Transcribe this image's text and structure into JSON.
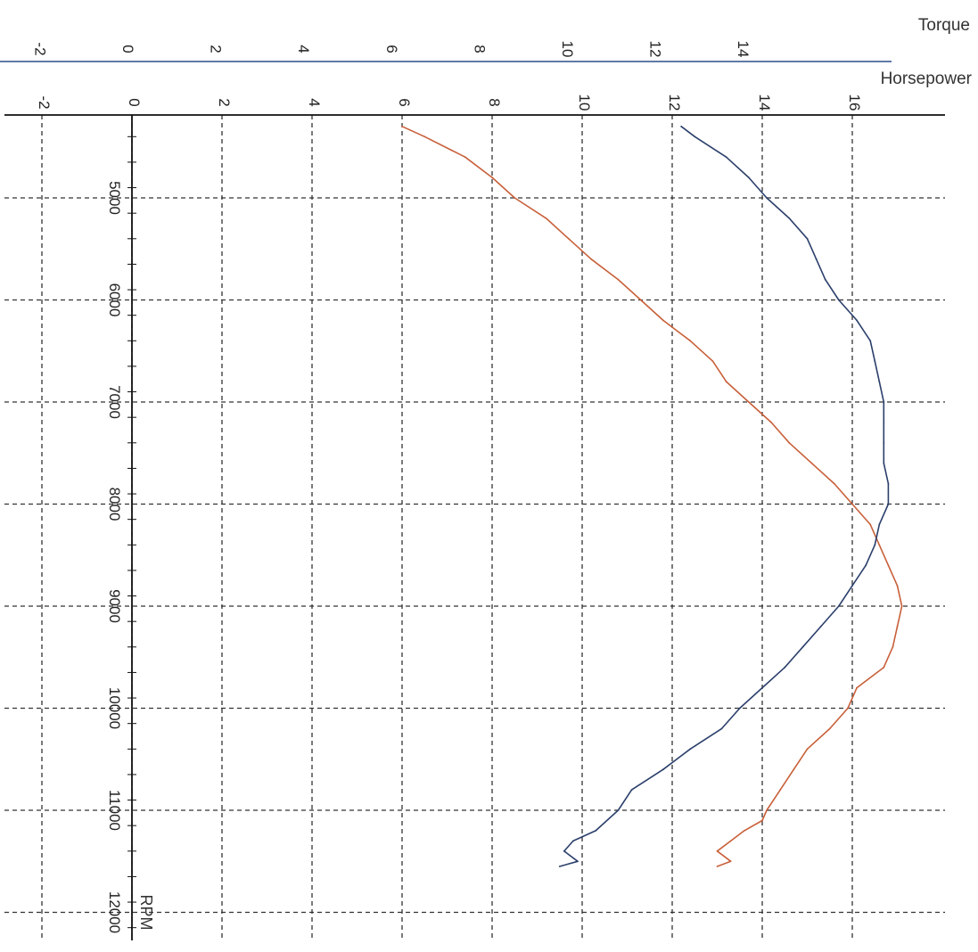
{
  "chart_data": {
    "type": "line",
    "orientation": "rotated-90",
    "x_axis": {
      "label": "RPM",
      "ticks": [
        5000,
        6000,
        7000,
        8000,
        9000,
        10000,
        11000,
        12000
      ]
    },
    "value_axes": [
      {
        "label": "Torque",
        "ticks": [
          -2,
          0,
          2,
          4,
          6,
          8,
          10,
          12,
          14
        ],
        "color": "#2b4f8c"
      },
      {
        "label": "Horsepower",
        "ticks": [
          -2,
          0,
          2,
          4,
          6,
          8,
          10,
          12,
          14,
          16
        ],
        "color": "#111111"
      }
    ],
    "grid": true,
    "series": [
      {
        "color": "#c8603a",
        "scale": "Horsepower",
        "points": [
          [
            4300,
            6.0
          ],
          [
            4400,
            6.5
          ],
          [
            4600,
            7.4
          ],
          [
            4800,
            8.0
          ],
          [
            5000,
            8.5
          ],
          [
            5200,
            9.2
          ],
          [
            5400,
            9.7
          ],
          [
            5600,
            10.2
          ],
          [
            5800,
            10.8
          ],
          [
            6000,
            11.3
          ],
          [
            6200,
            11.8
          ],
          [
            6400,
            12.4
          ],
          [
            6600,
            12.9
          ],
          [
            6800,
            13.2
          ],
          [
            7000,
            13.7
          ],
          [
            7200,
            14.2
          ],
          [
            7400,
            14.6
          ],
          [
            7600,
            15.1
          ],
          [
            7800,
            15.6
          ],
          [
            8000,
            16.0
          ],
          [
            8200,
            16.4
          ],
          [
            8400,
            16.6
          ],
          [
            8600,
            16.8
          ],
          [
            8800,
            17.0
          ],
          [
            9000,
            17.1
          ],
          [
            9200,
            17.0
          ],
          [
            9400,
            16.9
          ],
          [
            9600,
            16.7
          ],
          [
            9800,
            16.1
          ],
          [
            10000,
            15.9
          ],
          [
            10200,
            15.5
          ],
          [
            10400,
            15.0
          ],
          [
            10600,
            14.7
          ],
          [
            10800,
            14.4
          ],
          [
            11000,
            14.1
          ],
          [
            11100,
            14.0
          ],
          [
            11200,
            13.6
          ],
          [
            11300,
            13.3
          ],
          [
            11400,
            13.0
          ],
          [
            11500,
            13.3
          ],
          [
            11550,
            13.0
          ]
        ]
      },
      {
        "color": "#2b3f6b",
        "scale": "Horsepower",
        "points": [
          [
            4300,
            12.2
          ],
          [
            4400,
            12.5
          ],
          [
            4600,
            13.2
          ],
          [
            4800,
            13.7
          ],
          [
            5000,
            14.1
          ],
          [
            5200,
            14.6
          ],
          [
            5400,
            15.0
          ],
          [
            5600,
            15.2
          ],
          [
            5800,
            15.4
          ],
          [
            6000,
            15.7
          ],
          [
            6200,
            16.1
          ],
          [
            6400,
            16.4
          ],
          [
            6600,
            16.5
          ],
          [
            6800,
            16.6
          ],
          [
            7000,
            16.7
          ],
          [
            7200,
            16.7
          ],
          [
            7400,
            16.7
          ],
          [
            7600,
            16.7
          ],
          [
            7800,
            16.8
          ],
          [
            8000,
            16.8
          ],
          [
            8200,
            16.6
          ],
          [
            8400,
            16.5
          ],
          [
            8600,
            16.3
          ],
          [
            8800,
            16.0
          ],
          [
            9000,
            15.7
          ],
          [
            9200,
            15.3
          ],
          [
            9400,
            14.9
          ],
          [
            9600,
            14.5
          ],
          [
            9800,
            14.0
          ],
          [
            10000,
            13.5
          ],
          [
            10200,
            13.1
          ],
          [
            10400,
            12.4
          ],
          [
            10600,
            11.8
          ],
          [
            10800,
            11.1
          ],
          [
            11000,
            10.8
          ],
          [
            11200,
            10.3
          ],
          [
            11300,
            9.8
          ],
          [
            11400,
            9.6
          ],
          [
            11500,
            9.9
          ],
          [
            11550,
            9.5
          ]
        ]
      }
    ]
  }
}
